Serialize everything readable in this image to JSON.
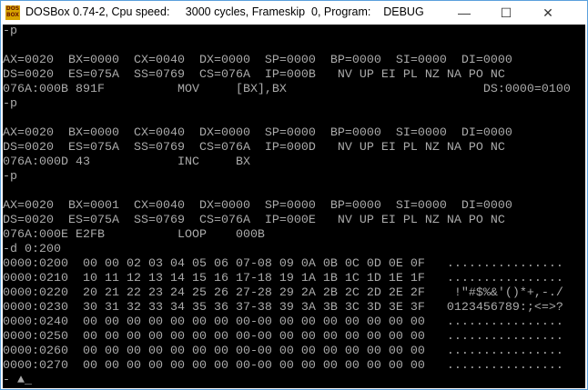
{
  "window": {
    "title": "DOSBox 0.74-2, Cpu speed:     3000 cycles, Frameskip  0, Program:    DEBUG",
    "icon": "dosbox-icon",
    "icon_text": "DOS BOX",
    "controls": {
      "minimize": "—",
      "maximize": "☐",
      "close": "✕"
    }
  },
  "console": {
    "lines": [
      "-p",
      "",
      "AX=0020  BX=0000  CX=0040  DX=0000  SP=0000  BP=0000  SI=0000  DI=0000",
      "DS=0020  ES=075A  SS=0769  CS=076A  IP=000B   NV UP EI PL NZ NA PO NC",
      "076A:000B 891F          MOV     [BX],BX                           DS:0000=0100",
      "-p",
      "",
      "AX=0020  BX=0000  CX=0040  DX=0000  SP=0000  BP=0000  SI=0000  DI=0000",
      "DS=0020  ES=075A  SS=0769  CS=076A  IP=000D   NV UP EI PL NZ NA PO NC",
      "076A:000D 43            INC     BX",
      "-p",
      "",
      "AX=0020  BX=0001  CX=0040  DX=0000  SP=0000  BP=0000  SI=0000  DI=0000",
      "DS=0020  ES=075A  SS=0769  CS=076A  IP=000E   NV UP EI PL NZ NA PO NC",
      "076A:000E E2FB          LOOP    000B",
      "-d 0:200",
      "0000:0200  00 00 02 03 04 05 06 07-08 09 0A 0B 0C 0D 0E 0F   ................",
      "0000:0210  10 11 12 13 14 15 16 17-18 19 1A 1B 1C 1D 1E 1F   ................",
      "0000:0220  20 21 22 23 24 25 26 27-28 29 2A 2B 2C 2D 2E 2F    !\"#$%&'()*+,-./",
      "0000:0230  30 31 32 33 34 35 36 37-38 39 3A 3B 3C 3D 3E 3F   0123456789:;<=>?",
      "0000:0240  00 00 00 00 00 00 00 00-00 00 00 00 00 00 00 00   ................",
      "0000:0250  00 00 00 00 00 00 00 00-00 00 00 00 00 00 00 00   ................",
      "0000:0260  00 00 00 00 00 00 00 00-00 00 00 00 00 00 00 00   ................",
      "0000:0270  00 00 00 00 00 00 00 00-00 00 00 00 00 00 00 00   ................",
      "- ▲_"
    ]
  }
}
